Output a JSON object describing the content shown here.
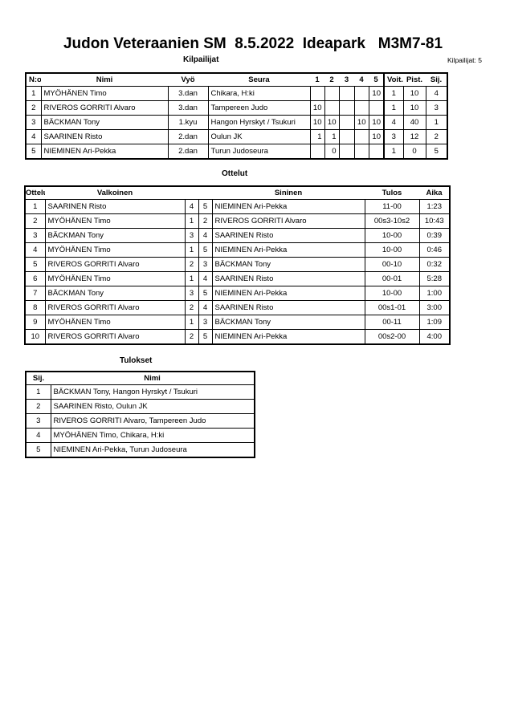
{
  "title": "Judon Veteraanien SM  8.5.2022  Ideapark   M3M7-81",
  "competitors": {
    "section_label": "Kilpailijat",
    "count_label": "Kilpailijat: 5",
    "headers": [
      "N:o",
      "Nimi",
      "Vyö",
      "Seura",
      "1",
      "2",
      "3",
      "4",
      "5",
      "Voit.",
      "Pist.",
      "Sij."
    ],
    "rows": [
      [
        "1",
        "MYÖHÄNEN Timo",
        "3.dan",
        "Chikara, H:ki",
        "",
        "",
        "",
        "",
        "10",
        "1",
        "10",
        "4"
      ],
      [
        "2",
        "RIVEROS GORRITI Alvaro",
        "3.dan",
        "Tampereen Judo",
        "10",
        "",
        "",
        "",
        "",
        "1",
        "10",
        "3"
      ],
      [
        "3",
        "BÄCKMAN Tony",
        "1.kyu",
        "Hangon Hyrskyt / Tsukuri",
        "10",
        "10",
        "",
        "10",
        "10",
        "4",
        "40",
        "1"
      ],
      [
        "4",
        "SAARINEN Risto",
        "2.dan",
        "Oulun JK",
        "1",
        "1",
        "",
        "",
        "10",
        "3",
        "12",
        "2"
      ],
      [
        "5",
        "NIEMINEN Ari-Pekka",
        "2.dan",
        "Turun Judoseura",
        "",
        "0",
        "",
        "",
        "",
        "1",
        "0",
        "5"
      ]
    ]
  },
  "matches": {
    "section_label": "Ottelut",
    "headers": [
      "Ottelu",
      "Valkoinen",
      "Sininen",
      "Tulos",
      "Aika"
    ],
    "rows": [
      [
        "1",
        "SAARINEN Risto",
        "4",
        "5",
        "NIEMINEN Ari-Pekka",
        "11-00",
        "1:23"
      ],
      [
        "2",
        "MYÖHÄNEN Timo",
        "1",
        "2",
        "RIVEROS GORRITI Alvaro",
        "00s3-10s2",
        "10:43"
      ],
      [
        "3",
        "BÄCKMAN Tony",
        "3",
        "4",
        "SAARINEN Risto",
        "10-00",
        "0:39"
      ],
      [
        "4",
        "MYÖHÄNEN Timo",
        "1",
        "5",
        "NIEMINEN Ari-Pekka",
        "10-00",
        "0:46"
      ],
      [
        "5",
        "RIVEROS GORRITI Alvaro",
        "2",
        "3",
        "BÄCKMAN Tony",
        "00-10",
        "0:32"
      ],
      [
        "6",
        "MYÖHÄNEN Timo",
        "1",
        "4",
        "SAARINEN Risto",
        "00-01",
        "5:28"
      ],
      [
        "7",
        "BÄCKMAN Tony",
        "3",
        "5",
        "NIEMINEN Ari-Pekka",
        "10-00",
        "1:00"
      ],
      [
        "8",
        "RIVEROS GORRITI Alvaro",
        "2",
        "4",
        "SAARINEN Risto",
        "00s1-01",
        "3:00"
      ],
      [
        "9",
        "MYÖHÄNEN Timo",
        "1",
        "3",
        "BÄCKMAN Tony",
        "00-11",
        "1:09"
      ],
      [
        "10",
        "RIVEROS GORRITI Alvaro",
        "2",
        "5",
        "NIEMINEN Ari-Pekka",
        "00s2-00",
        "4:00"
      ]
    ]
  },
  "results": {
    "section_label": "Tulokset",
    "headers": [
      "Sij.",
      "Nimi"
    ],
    "rows": [
      [
        "1",
        "BÄCKMAN Tony, Hangon Hyrskyt / Tsukuri"
      ],
      [
        "2",
        "SAARINEN Risto, Oulun JK"
      ],
      [
        "3",
        "RIVEROS GORRITI Alvaro, Tampereen Judo"
      ],
      [
        "4",
        "MYÖHÄNEN Timo, Chikara, H:ki"
      ],
      [
        "5",
        "NIEMINEN Ari-Pekka, Turun Judoseura"
      ]
    ]
  }
}
